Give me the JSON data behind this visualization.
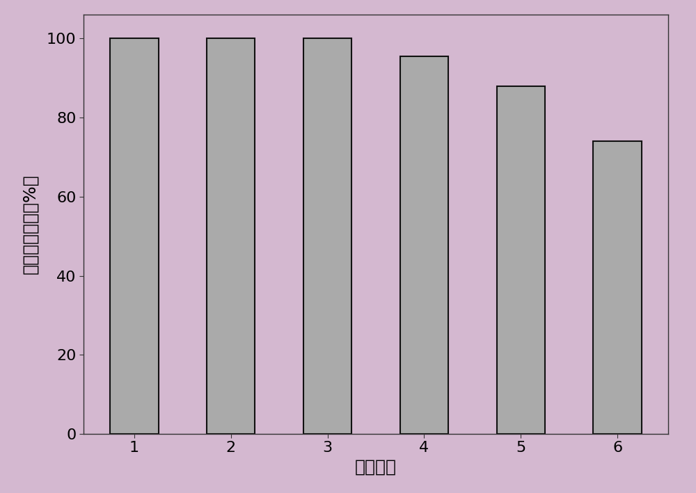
{
  "categories": [
    "1",
    "2",
    "3",
    "4",
    "5",
    "6"
  ],
  "values": [
    100,
    100,
    100,
    95.5,
    88,
    74
  ],
  "bar_color": "#aaaaaa",
  "bar_edge_color": "#111111",
  "bar_edge_width": 1.5,
  "background_color": "#d4b8d0",
  "plot_bg_color": "#d4b8d0",
  "xlabel": "重复次数",
  "ylabel": "对氯苯胺含量（%）",
  "ylim": [
    0,
    106
  ],
  "yticks": [
    0,
    20,
    40,
    60,
    80,
    100
  ],
  "xlabel_fontsize": 18,
  "ylabel_fontsize": 18,
  "tick_fontsize": 16,
  "bar_width": 0.5
}
